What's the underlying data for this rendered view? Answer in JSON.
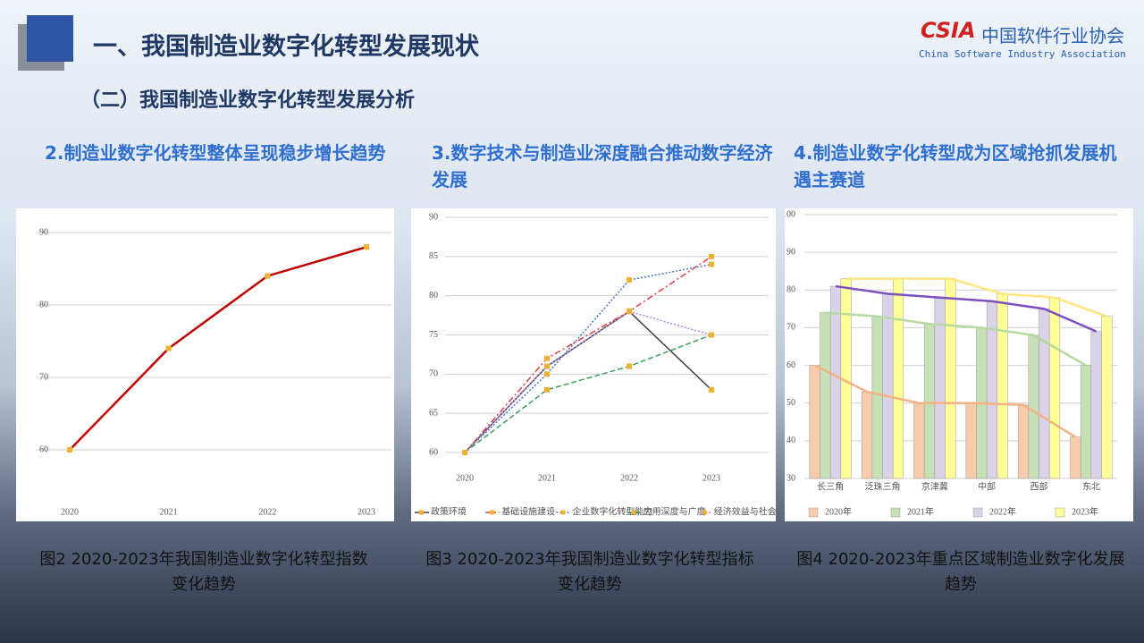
{
  "header": {
    "title": "一、我国制造业数字化转型发展现状",
    "subtitle": "（二）我国制造业数字化转型发展分析",
    "logo": {
      "mark": "CSIA",
      "name": "中国软件行业协会",
      "english": "China Software Industry Association"
    }
  },
  "headings": [
    "2.制造业数字化转型整体呈现稳步增长趋势",
    "3.数字技术与制造业深度融合推动数字经济发展",
    "4.制造业数字化转型成为区域抢抓发展机遇主赛道"
  ],
  "captions": [
    "图2 2020-2023年我国制造业数字化转型指数变化趋势",
    "图3 2020-2023年我国制造业数字化转型指标变化趋势",
    "图4 2020-2023年重点区域制造业数字化发展趋势"
  ],
  "chart_data": [
    {
      "type": "line",
      "categories": [
        "2020",
        "2021",
        "2022",
        "2023"
      ],
      "values": [
        60,
        74,
        84,
        88
      ],
      "color": "#c00000",
      "marker_color": "#f0b030",
      "ylim": [
        60,
        90
      ],
      "yticks": [
        60,
        70,
        80,
        90
      ],
      "grid": true
    },
    {
      "type": "line",
      "categories": [
        "2020",
        "2021",
        "2022",
        "2023"
      ],
      "marker_color": "#f0b030",
      "ylim": [
        60,
        90
      ],
      "yticks": [
        60,
        65,
        70,
        75,
        80,
        85,
        90
      ],
      "grid": true,
      "legend": "bottom",
      "series": [
        {
          "name": "政策环境",
          "color": "#404040",
          "dash": "solid",
          "values": [
            60,
            71,
            78,
            68
          ]
        },
        {
          "name": "基础设施建设",
          "color": "#e04040",
          "dash": "dashdot",
          "values": [
            60,
            72,
            78,
            85
          ]
        },
        {
          "name": "企业数字化转型能力",
          "color": "#4472c4",
          "dash": "dotted",
          "values": [
            60,
            70,
            82,
            84
          ]
        },
        {
          "name": "应用深度与广度",
          "color": "#3aa05a",
          "dash": "dashed",
          "values": [
            60,
            68,
            71,
            75
          ]
        },
        {
          "name": "经济效益与社会效益",
          "color": "#b080e0",
          "dash": "dotted",
          "values": [
            60,
            71,
            78,
            75
          ]
        }
      ]
    },
    {
      "type": "bar",
      "lines": true,
      "categories": [
        "长三角",
        "泛珠三角",
        "京津冀",
        "中部",
        "西部",
        "东北"
      ],
      "ylim": [
        30,
        100
      ],
      "yticks": [
        30,
        40,
        50,
        60,
        70,
        80,
        90,
        100
      ],
      "grid": true,
      "legend": "bottom",
      "series": [
        {
          "name": "2020年",
          "color": "#f8cbad",
          "line_color": "#f4b183",
          "values": [
            60,
            53,
            50,
            50,
            49.5,
            41
          ]
        },
        {
          "name": "2021年",
          "color": "#c5e0b4",
          "line_color": "#b5d9a0",
          "values": [
            74,
            73,
            71,
            70,
            68,
            60
          ]
        },
        {
          "name": "2022年",
          "color": "#d9d2e9",
          "line_color": "#7f4fbf",
          "values": [
            81,
            79,
            78,
            77,
            75,
            69
          ]
        },
        {
          "name": "2023年",
          "color": "#ffff99",
          "line_color": "#ffe680",
          "values": [
            83,
            83,
            83,
            79,
            78,
            73
          ]
        }
      ]
    }
  ]
}
